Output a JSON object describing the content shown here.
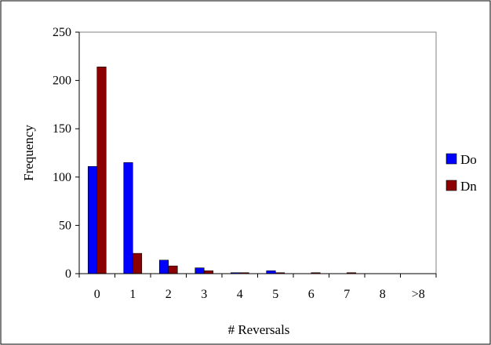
{
  "chart_data": {
    "type": "bar",
    "xlabel": "# Reversals",
    "ylabel": "Frequency",
    "categories": [
      "0",
      "1",
      "2",
      "3",
      "4",
      "5",
      "6",
      "7",
      "8",
      ">8"
    ],
    "ylim": [
      0,
      250
    ],
    "yticks": [
      0,
      50,
      100,
      150,
      200,
      250
    ],
    "grid": false,
    "legend_position": "right",
    "series": [
      {
        "name": "Do",
        "color": "#0000FF",
        "values": [
          111,
          115,
          14,
          6,
          1,
          3,
          0,
          0,
          0,
          0
        ]
      },
      {
        "name": "Dn",
        "color": "#8B0000",
        "values": [
          214,
          21,
          8,
          3,
          1,
          1,
          1,
          1,
          0,
          0
        ]
      }
    ]
  }
}
